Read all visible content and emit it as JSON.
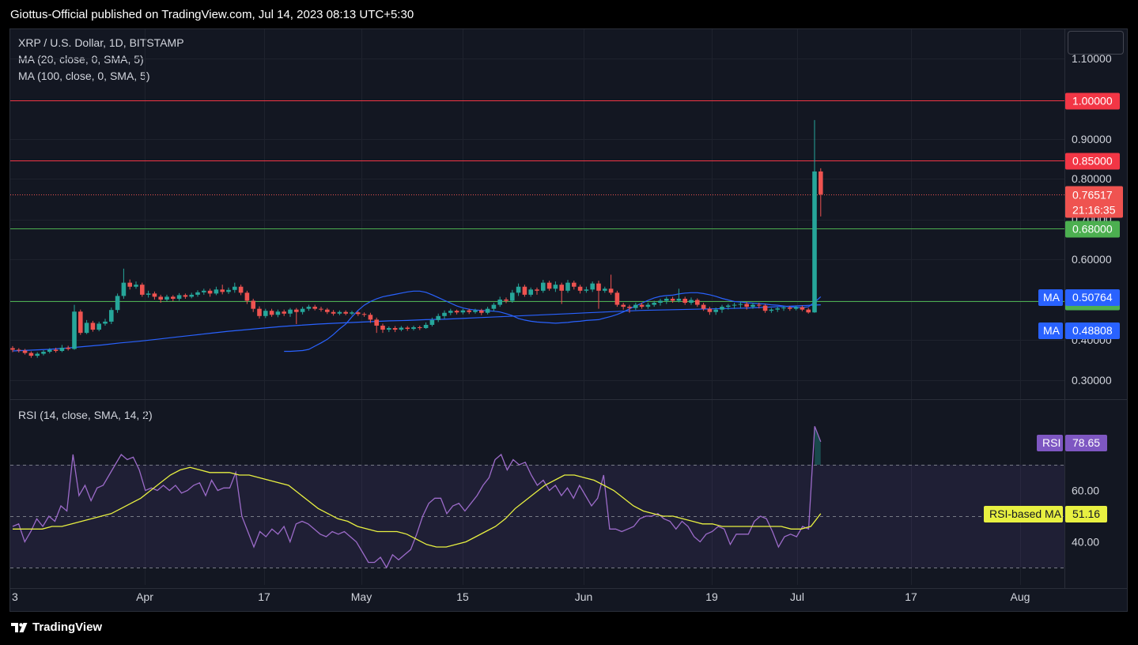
{
  "header": {
    "publish_line": "Giottus-Official published on TradingView.com, Jul 14, 2023 08:13 UTC+5:30"
  },
  "footer": {
    "brand": "TradingView"
  },
  "legend": {
    "symbol": "XRP / U.S. Dollar, 1D, BITSTAMP",
    "ma20": "MA (20, close, 0, SMA, 5)",
    "ma100": "MA (100, close, 0, SMA, 5)",
    "rsi": "RSI (14, close, SMA, 14, 2)"
  },
  "colors": {
    "up": "#26a69a",
    "down": "#ef5350",
    "ma": "#2962ff",
    "rsi": "#9c6bc9",
    "rsi_ma": "#e8f041",
    "resistance": "#f23645",
    "support": "#4caf50"
  },
  "chart_data": {
    "type": "candlestick",
    "price_axis": {
      "ticks": [
        "1.10000",
        "0.90000",
        "0.85000",
        "0.80000",
        "0.70000",
        "0.60000",
        "0.40000",
        "0.30000"
      ],
      "ylim": [
        0.25,
        1.15
      ]
    },
    "x_ticks": [
      "3",
      "Apr",
      "17",
      "May",
      "15",
      "Jun",
      "19",
      "Jul",
      "17",
      "Aug"
    ],
    "horizontal_lines": [
      {
        "price": 1.0,
        "label": "1.00000",
        "color": "#f23645"
      },
      {
        "price": 0.85,
        "label": "0.85000",
        "color": "#f23645"
      },
      {
        "price": 0.68,
        "label": "0.68000",
        "color": "#4caf50"
      },
      {
        "price": 0.5,
        "label": "0.50000",
        "color": "#4caf50"
      }
    ],
    "last_price": {
      "value": 0.76517,
      "label": "0.76517",
      "countdown": "21:16:35"
    },
    "ma_labels": [
      {
        "name": "MA",
        "value": "0.50764"
      },
      {
        "name": "MA",
        "value": "0.48808"
      }
    ],
    "candles": [
      [
        0.382,
        0.378,
        0.387,
        0.372
      ],
      [
        0.378,
        0.376,
        0.382,
        0.371
      ],
      [
        0.376,
        0.37,
        0.38,
        0.366
      ],
      [
        0.37,
        0.363,
        0.374,
        0.358
      ],
      [
        0.363,
        0.368,
        0.372,
        0.358
      ],
      [
        0.368,
        0.373,
        0.377,
        0.364
      ],
      [
        0.373,
        0.378,
        0.382,
        0.369
      ],
      [
        0.378,
        0.375,
        0.383,
        0.371
      ],
      [
        0.375,
        0.383,
        0.39,
        0.372
      ],
      [
        0.383,
        0.38,
        0.388,
        0.376
      ],
      [
        0.38,
        0.473,
        0.49,
        0.378
      ],
      [
        0.473,
        0.42,
        0.478,
        0.415
      ],
      [
        0.42,
        0.445,
        0.452,
        0.417
      ],
      [
        0.445,
        0.428,
        0.45,
        0.423
      ],
      [
        0.428,
        0.443,
        0.448,
        0.424
      ],
      [
        0.443,
        0.448,
        0.455,
        0.438
      ],
      [
        0.448,
        0.477,
        0.483,
        0.442
      ],
      [
        0.477,
        0.512,
        0.518,
        0.47
      ],
      [
        0.512,
        0.545,
        0.58,
        0.505
      ],
      [
        0.545,
        0.535,
        0.553,
        0.528
      ],
      [
        0.535,
        0.54,
        0.548,
        0.53
      ],
      [
        0.54,
        0.515,
        0.545,
        0.51
      ],
      [
        0.515,
        0.518,
        0.525,
        0.508
      ],
      [
        0.518,
        0.51,
        0.523,
        0.503
      ],
      [
        0.51,
        0.503,
        0.515,
        0.495
      ],
      [
        0.503,
        0.51,
        0.515,
        0.499
      ],
      [
        0.51,
        0.505,
        0.514,
        0.499
      ],
      [
        0.505,
        0.514,
        0.519,
        0.5
      ],
      [
        0.514,
        0.51,
        0.518,
        0.505
      ],
      [
        0.51,
        0.515,
        0.52,
        0.506
      ],
      [
        0.515,
        0.521,
        0.526,
        0.51
      ],
      [
        0.521,
        0.525,
        0.53,
        0.515
      ],
      [
        0.525,
        0.518,
        0.53,
        0.51
      ],
      [
        0.518,
        0.528,
        0.535,
        0.514
      ],
      [
        0.528,
        0.522,
        0.54,
        0.516
      ],
      [
        0.522,
        0.527,
        0.533,
        0.517
      ],
      [
        0.527,
        0.535,
        0.545,
        0.52
      ],
      [
        0.535,
        0.52,
        0.54,
        0.514
      ],
      [
        0.52,
        0.5,
        0.525,
        0.492
      ],
      [
        0.5,
        0.48,
        0.505,
        0.472
      ],
      [
        0.48,
        0.462,
        0.486,
        0.456
      ],
      [
        0.462,
        0.475,
        0.48,
        0.457
      ],
      [
        0.475,
        0.465,
        0.48,
        0.46
      ],
      [
        0.465,
        0.473,
        0.478,
        0.459
      ],
      [
        0.473,
        0.468,
        0.478,
        0.462
      ],
      [
        0.468,
        0.478,
        0.482,
        0.46
      ],
      [
        0.478,
        0.472,
        0.482,
        0.442
      ],
      [
        0.472,
        0.48,
        0.485,
        0.466
      ],
      [
        0.48,
        0.485,
        0.49,
        0.475
      ],
      [
        0.485,
        0.48,
        0.49,
        0.476
      ],
      [
        0.48,
        0.478,
        0.485,
        0.473
      ],
      [
        0.478,
        0.472,
        0.482,
        0.467
      ],
      [
        0.472,
        0.468,
        0.477,
        0.463
      ],
      [
        0.468,
        0.472,
        0.476,
        0.464
      ],
      [
        0.472,
        0.468,
        0.476,
        0.464
      ],
      [
        0.468,
        0.471,
        0.475,
        0.464
      ],
      [
        0.471,
        0.467,
        0.474,
        0.462
      ],
      [
        0.467,
        0.465,
        0.471,
        0.46
      ],
      [
        0.465,
        0.453,
        0.47,
        0.445
      ],
      [
        0.453,
        0.438,
        0.458,
        0.42
      ],
      [
        0.438,
        0.428,
        0.443,
        0.42
      ],
      [
        0.428,
        0.432,
        0.436,
        0.422
      ],
      [
        0.432,
        0.428,
        0.437,
        0.422
      ],
      [
        0.428,
        0.433,
        0.437,
        0.424
      ],
      [
        0.433,
        0.43,
        0.437,
        0.425
      ],
      [
        0.43,
        0.434,
        0.438,
        0.426
      ],
      [
        0.434,
        0.432,
        0.438,
        0.427
      ],
      [
        0.432,
        0.44,
        0.446,
        0.43
      ],
      [
        0.44,
        0.452,
        0.458,
        0.436
      ],
      [
        0.452,
        0.462,
        0.468,
        0.447
      ],
      [
        0.462,
        0.47,
        0.476,
        0.455
      ],
      [
        0.47,
        0.475,
        0.48,
        0.464
      ],
      [
        0.475,
        0.471,
        0.478,
        0.466
      ],
      [
        0.471,
        0.476,
        0.48,
        0.466
      ],
      [
        0.476,
        0.472,
        0.48,
        0.467
      ],
      [
        0.472,
        0.476,
        0.48,
        0.468
      ],
      [
        0.476,
        0.47,
        0.48,
        0.464
      ],
      [
        0.47,
        0.48,
        0.485,
        0.466
      ],
      [
        0.48,
        0.49,
        0.495,
        0.474
      ],
      [
        0.49,
        0.503,
        0.51,
        0.485
      ],
      [
        0.503,
        0.5,
        0.508,
        0.494
      ],
      [
        0.5,
        0.52,
        0.527,
        0.495
      ],
      [
        0.52,
        0.535,
        0.543,
        0.512
      ],
      [
        0.535,
        0.515,
        0.54,
        0.51
      ],
      [
        0.515,
        0.528,
        0.533,
        0.51
      ],
      [
        0.528,
        0.525,
        0.533,
        0.515
      ],
      [
        0.525,
        0.545,
        0.552,
        0.52
      ],
      [
        0.545,
        0.53,
        0.55,
        0.525
      ],
      [
        0.53,
        0.54,
        0.548,
        0.522
      ],
      [
        0.54,
        0.525,
        0.545,
        0.492
      ],
      [
        0.525,
        0.545,
        0.552,
        0.52
      ],
      [
        0.545,
        0.535,
        0.55,
        0.528
      ],
      [
        0.535,
        0.525,
        0.54,
        0.518
      ],
      [
        0.525,
        0.528,
        0.535,
        0.52
      ],
      [
        0.528,
        0.543,
        0.548,
        0.522
      ],
      [
        0.543,
        0.525,
        0.55,
        0.48
      ],
      [
        0.525,
        0.53,
        0.535,
        0.52
      ],
      [
        0.53,
        0.52,
        0.565,
        0.515
      ],
      [
        0.52,
        0.49,
        0.525,
        0.485
      ],
      [
        0.49,
        0.485,
        0.495,
        0.478
      ],
      [
        0.485,
        0.482,
        0.49,
        0.47
      ],
      [
        0.482,
        0.49,
        0.495,
        0.477
      ],
      [
        0.49,
        0.485,
        0.495,
        0.48
      ],
      [
        0.485,
        0.49,
        0.495,
        0.48
      ],
      [
        0.49,
        0.495,
        0.5,
        0.485
      ],
      [
        0.495,
        0.5,
        0.505,
        0.488
      ],
      [
        0.5,
        0.505,
        0.51,
        0.492
      ],
      [
        0.505,
        0.5,
        0.51,
        0.495
      ],
      [
        0.5,
        0.505,
        0.53,
        0.496
      ],
      [
        0.505,
        0.495,
        0.51,
        0.49
      ],
      [
        0.495,
        0.502,
        0.508,
        0.49
      ],
      [
        0.502,
        0.49,
        0.506,
        0.485
      ],
      [
        0.49,
        0.48,
        0.495,
        0.475
      ],
      [
        0.48,
        0.472,
        0.485,
        0.465
      ],
      [
        0.472,
        0.478,
        0.483,
        0.465
      ],
      [
        0.478,
        0.485,
        0.49,
        0.47
      ],
      [
        0.485,
        0.488,
        0.492,
        0.478
      ],
      [
        0.488,
        0.49,
        0.495,
        0.48
      ],
      [
        0.49,
        0.492,
        0.497,
        0.482
      ],
      [
        0.492,
        0.485,
        0.497,
        0.478
      ],
      [
        0.485,
        0.49,
        0.495,
        0.48
      ],
      [
        0.49,
        0.488,
        0.495,
        0.481
      ],
      [
        0.488,
        0.475,
        0.492,
        0.47
      ],
      [
        0.475,
        0.478,
        0.482,
        0.47
      ],
      [
        0.478,
        0.481,
        0.485,
        0.472
      ],
      [
        0.481,
        0.483,
        0.487,
        0.475
      ],
      [
        0.483,
        0.48,
        0.487,
        0.475
      ],
      [
        0.48,
        0.484,
        0.488,
        0.476
      ],
      [
        0.484,
        0.478,
        0.488,
        0.474
      ],
      [
        0.478,
        0.471,
        0.482,
        0.468
      ],
      [
        0.471,
        0.822,
        0.95,
        0.47
      ],
      [
        0.822,
        0.765,
        0.83,
        0.71
      ]
    ],
    "ma20": [
      0.374,
      0.374,
      0.375,
      0.376,
      0.379,
      0.387,
      0.395,
      0.404,
      0.416,
      0.43,
      0.442,
      0.46,
      0.476,
      0.489,
      0.498,
      0.505,
      0.51,
      0.513,
      0.516,
      0.519,
      0.522,
      0.524,
      0.524,
      0.521,
      0.515,
      0.508,
      0.501,
      0.494,
      0.487,
      0.482,
      0.479,
      0.477,
      0.476,
      0.475,
      0.474,
      0.472,
      0.468,
      0.463,
      0.456,
      0.452,
      0.449,
      0.447,
      0.446,
      0.445,
      0.444,
      0.445,
      0.446,
      0.448,
      0.449,
      0.451,
      0.452,
      0.453,
      0.457,
      0.461,
      0.466,
      0.472,
      0.48,
      0.487,
      0.494,
      0.501,
      0.507,
      0.511,
      0.513,
      0.514,
      0.517,
      0.519,
      0.52,
      0.52,
      0.518,
      0.515,
      0.511,
      0.506,
      0.502,
      0.498,
      0.497,
      0.495,
      0.494,
      0.493,
      0.492,
      0.49,
      0.489,
      0.487,
      0.485,
      0.484,
      0.483,
      0.485,
      0.496,
      0.51
    ],
    "ma100": [
      0.375,
      0.377,
      0.379,
      0.382,
      0.386,
      0.39,
      0.395,
      0.399,
      0.404,
      0.409,
      0.414,
      0.419,
      0.424,
      0.428,
      0.432,
      0.436,
      0.439,
      0.442,
      0.444,
      0.446,
      0.448,
      0.45,
      0.451,
      0.453,
      0.454,
      0.456,
      0.458,
      0.46,
      0.462,
      0.464,
      0.466,
      0.468,
      0.47,
      0.472,
      0.474,
      0.476,
      0.477,
      0.478,
      0.479,
      0.48,
      0.481,
      0.482,
      0.484,
      0.486,
      0.488,
      0.49
    ],
    "rsi_panel": {
      "ticks": [
        "60.00",
        "40.00"
      ],
      "ylim": [
        20,
        92
      ],
      "bands": [
        70,
        50,
        30
      ],
      "rsi_value": "78.65",
      "rsi_label": "RSI",
      "rsi_ma_value": "51.16",
      "rsi_ma_label": "RSI-based MA",
      "rsi": [
        46,
        47,
        40,
        44,
        49,
        46,
        50,
        48,
        54,
        52,
        74,
        58,
        62,
        56,
        61,
        62,
        66,
        70,
        74,
        72,
        73,
        68,
        60,
        61,
        60,
        62,
        60,
        62,
        59,
        60,
        62,
        63,
        58,
        64,
        60,
        61,
        61,
        67,
        50,
        44,
        38,
        44,
        42,
        45,
        43,
        46,
        40,
        47,
        48,
        47,
        45,
        43,
        42,
        44,
        43,
        44,
        42,
        40,
        36,
        32,
        32,
        34,
        30,
        35,
        33,
        35,
        37,
        43,
        50,
        55,
        57,
        57,
        51,
        54,
        55,
        52,
        55,
        58,
        62,
        65,
        72,
        74,
        68,
        72,
        70,
        71,
        66,
        62,
        64,
        60,
        62,
        58,
        61,
        57,
        62,
        58,
        54,
        57,
        66,
        45,
        45,
        44,
        45,
        46,
        49,
        50,
        50,
        51,
        49,
        48,
        45,
        48,
        46,
        42,
        40,
        43,
        44,
        46,
        45,
        39,
        43,
        43,
        43,
        48,
        50,
        49,
        44,
        38,
        42,
        43,
        42,
        46,
        45,
        85,
        79
      ],
      "rsi_ma": [
        45,
        45,
        45,
        45,
        46,
        46,
        47,
        48,
        49,
        50,
        51,
        53,
        55,
        57,
        60,
        63,
        66,
        68,
        69,
        68,
        67,
        67,
        67,
        66,
        66,
        65,
        64,
        63,
        62,
        59,
        56,
        53,
        51,
        49,
        48,
        46,
        45,
        44,
        44,
        44,
        43,
        41,
        39,
        38,
        38,
        39,
        40,
        42,
        44,
        46,
        49,
        53,
        56,
        59,
        62,
        64,
        66,
        66,
        65,
        64,
        62,
        60,
        57,
        54,
        52,
        51,
        50,
        50,
        49,
        48,
        47,
        47,
        46,
        46,
        46,
        46,
        46,
        46,
        46,
        45,
        45,
        46,
        51
      ]
    }
  }
}
